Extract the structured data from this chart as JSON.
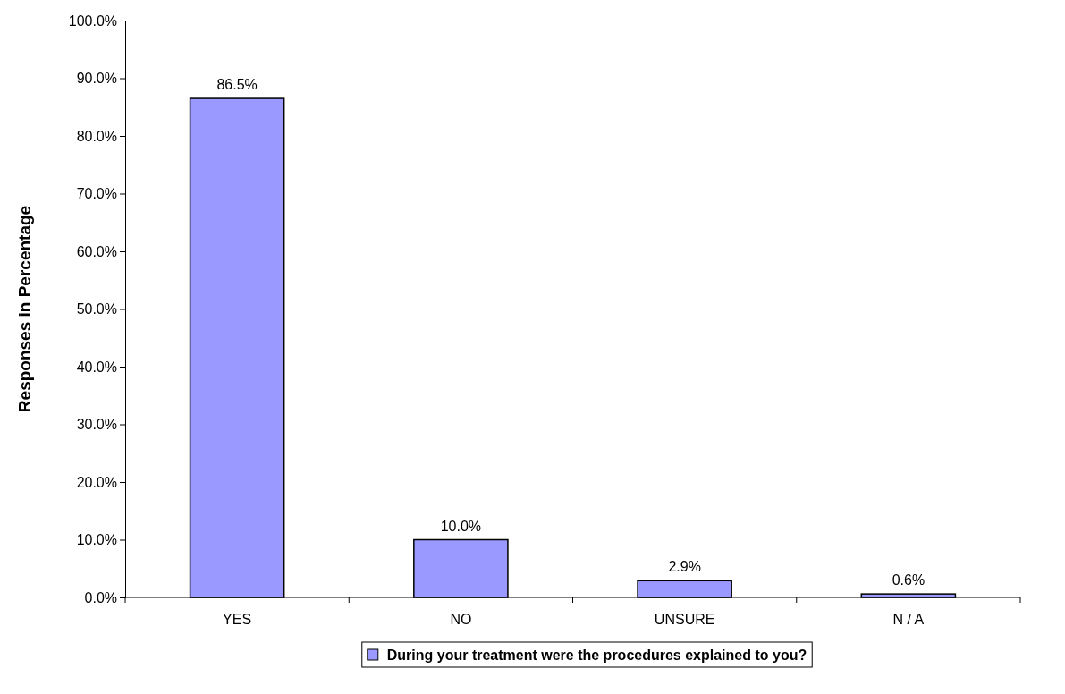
{
  "chart_data": {
    "type": "bar",
    "ylabel": "Responses in Percentage",
    "categories": [
      "YES",
      "NO",
      "UNSURE",
      "N / A"
    ],
    "series": [
      {
        "name": "During your treatment were the procedures explained to you?",
        "color": "#9999ff",
        "values": [
          86.5,
          10.0,
          2.9,
          0.6
        ],
        "value_labels": [
          "86.5%",
          "10.0%",
          "2.9%",
          "0.6%"
        ]
      }
    ],
    "ylim": [
      0,
      100
    ],
    "yticks": [
      {
        "value": 0,
        "label": "0.0%"
      },
      {
        "value": 10,
        "label": "10.0%"
      },
      {
        "value": 20,
        "label": "20.0%"
      },
      {
        "value": 30,
        "label": "30.0%"
      },
      {
        "value": 40,
        "label": "40.0%"
      },
      {
        "value": 50,
        "label": "50.0%"
      },
      {
        "value": 60,
        "label": "60.0%"
      },
      {
        "value": 70,
        "label": "70.0%"
      },
      {
        "value": 80,
        "label": "80.0%"
      },
      {
        "value": 90,
        "label": "90.0%"
      },
      {
        "value": 100,
        "label": "100.0%"
      }
    ],
    "grid": false,
    "legend": "bottom"
  }
}
